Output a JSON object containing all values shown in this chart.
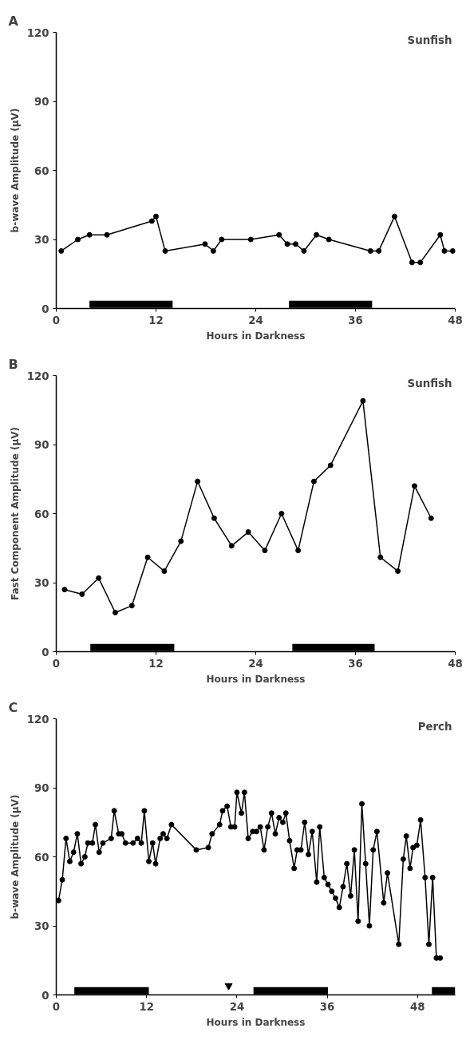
{
  "chart_data": [
    {
      "type": "line",
      "title": "A",
      "xlabel": "Hours in Darkness",
      "ylabel": "b-wave Amplitude (μV)",
      "annotations": [
        "Sunfish"
      ],
      "line_style": "solid",
      "grid": false,
      "xlim": [
        0,
        48
      ],
      "xticks": [
        0,
        12,
        24,
        36,
        48
      ],
      "ylim": [
        0,
        120
      ],
      "yticks": [
        0,
        30,
        60,
        90,
        120
      ],
      "series": [
        {
          "color": "#000000",
          "marker": "circle",
          "x": [
            0.6,
            2.6,
            4.0,
            6.1,
            11.5,
            12.0,
            13.1,
            17.9,
            18.9,
            19.9,
            23.4,
            26.8,
            27.8,
            28.8,
            29.8,
            31.3,
            32.8,
            37.8,
            38.8,
            40.7,
            42.8,
            43.8,
            46.2,
            46.7,
            47.7
          ],
          "values": [
            25,
            30,
            32,
            32,
            38,
            40,
            25,
            28,
            25,
            30,
            30,
            32,
            28,
            28,
            25,
            32,
            30,
            25,
            25,
            40,
            20,
            20,
            32,
            25,
            25
          ]
        },
        {
          "color": "#000000",
          "marker": "none",
          "x": [
            4,
            14
          ],
          "values": [
            1.8,
            1.8
          ]
        },
        {
          "color": "#000000",
          "marker": "none",
          "x": [
            28,
            38
          ],
          "values": [
            1.8,
            1.8
          ]
        }
      ]
    },
    {
      "type": "line",
      "title": "B",
      "xlabel": "Hours in Darkness",
      "ylabel": "Fast Component Amplitude (μV)",
      "annotations": [
        "Sunfish"
      ],
      "line_style": "solid",
      "grid": false,
      "xlim": [
        0,
        48
      ],
      "xticks": [
        0,
        12,
        24,
        36,
        48
      ],
      "ylim": [
        0,
        120
      ],
      "yticks": [
        0,
        30,
        60,
        90,
        120
      ],
      "series": [
        {
          "color": "#000000",
          "marker": "circle",
          "x": [
            1.0,
            3.1,
            5.1,
            7.1,
            9.1,
            11.0,
            13.0,
            15.0,
            17.0,
            19.0,
            21.1,
            23.1,
            25.1,
            27.1,
            29.1,
            31.0,
            33.0,
            36.9,
            39.0,
            41.1,
            43.1,
            45.1
          ],
          "values": [
            27,
            25,
            32,
            17,
            20,
            41,
            35,
            48,
            74,
            58,
            46,
            52,
            44,
            60,
            44,
            74,
            81,
            109,
            41,
            35,
            72,
            58
          ]
        },
        {
          "color": "#000000",
          "marker": "none",
          "x": [
            4.1,
            14.2
          ],
          "values": [
            1.8,
            1.8
          ]
        },
        {
          "color": "#000000",
          "marker": "none",
          "x": [
            28.4,
            38.3
          ],
          "values": [
            1.8,
            1.8
          ]
        }
      ]
    },
    {
      "type": "line",
      "title": "C",
      "xlabel": "Hours in Darkness",
      "ylabel": "b-wave Amplitude (μV)",
      "annotations": [
        "Perch"
      ],
      "line_style": "solid",
      "grid": false,
      "xlim": [
        0,
        53
      ],
      "xticks": [
        0,
        12,
        24,
        36,
        48
      ],
      "ylim": [
        0,
        120
      ],
      "yticks": [
        0,
        30,
        60,
        90,
        120
      ],
      "series": [
        {
          "color": "#000000",
          "marker": "circle",
          "x": [
            0.3,
            0.8,
            1.3,
            1.8,
            2.3,
            2.8,
            3.3,
            3.8,
            4.2,
            4.8,
            5.2,
            5.7,
            6.2,
            7.3,
            7.7,
            8.3,
            8.7,
            9.2,
            10.2,
            10.8,
            11.3,
            11.7,
            12.3,
            12.8,
            13.2,
            13.8,
            14.2,
            14.7,
            15.3,
            18.6,
            20.2,
            20.7,
            21.7,
            22.1,
            22.7,
            23.2,
            23.7,
            24.0,
            24.6,
            25.0,
            25.5,
            26.1,
            26.6,
            27.1,
            27.6,
            28.1,
            28.6,
            29.1,
            29.6,
            30.1,
            30.5,
            31.0,
            31.6,
            32.0,
            32.5,
            33.0,
            33.5,
            34.0,
            34.6,
            35.0,
            35.6,
            36.1,
            36.6,
            37.1,
            37.6,
            38.1,
            38.6,
            39.1,
            39.6,
            40.1,
            40.6,
            41.1,
            41.6,
            42.1,
            42.6,
            43.5,
            44.0,
            45.5,
            46.1,
            46.5,
            47.0,
            47.4,
            47.9,
            48.4,
            49.0,
            49.5,
            50.0,
            50.5,
            51.0
          ],
          "values": [
            41,
            50,
            68,
            58,
            62,
            70,
            57,
            60,
            66,
            66,
            74,
            62,
            66,
            68,
            80,
            70,
            70,
            66,
            66,
            68,
            66,
            80,
            58,
            66,
            57,
            68,
            70,
            68,
            74,
            63,
            64,
            70,
            74,
            80,
            82,
            73,
            73,
            88,
            79,
            88,
            68,
            71,
            71,
            73,
            63,
            73,
            79,
            70,
            77,
            75,
            79,
            67,
            55,
            63,
            63,
            75,
            61,
            71,
            49,
            73,
            51,
            48,
            45,
            42,
            38,
            47,
            57,
            43,
            63,
            32,
            83,
            57,
            30,
            63,
            71,
            40,
            53,
            22,
            59,
            69,
            55,
            64,
            65,
            76,
            51,
            22,
            51,
            16,
            16
          ]
        },
        {
          "color": "#000000",
          "marker": "none",
          "x": [
            2.4,
            12.3
          ],
          "values": [
            1.8,
            1.8
          ]
        },
        {
          "color": "#000000",
          "marker": "none",
          "x": [
            26.2,
            36.1
          ],
          "values": [
            1.8,
            1.8
          ]
        },
        {
          "color": "#000000",
          "marker": "none",
          "x": [
            49.9,
            53
          ],
          "values": [
            1.8,
            1.8
          ]
        },
        {
          "type": "scatter",
          "color": "#000000",
          "marker": "triangle",
          "x": [
            22.9
          ],
          "values": [
            4
          ]
        }
      ]
    }
  ]
}
